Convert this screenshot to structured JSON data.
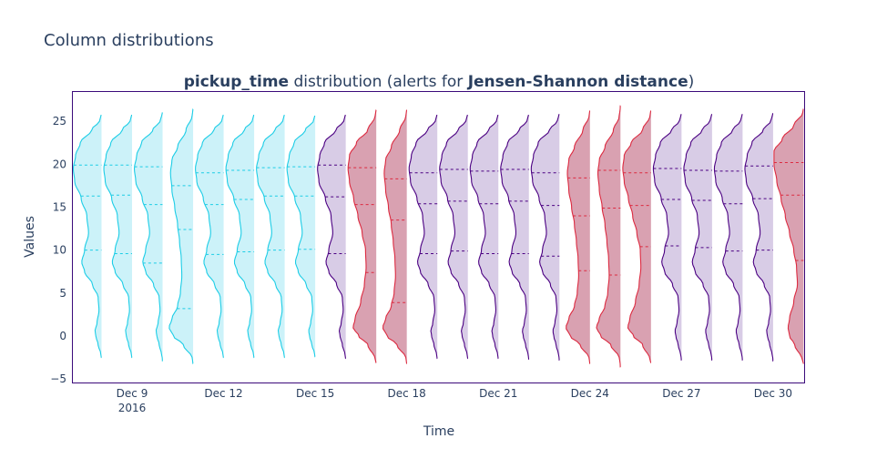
{
  "page_title": "Column distributions",
  "chart_data": {
    "type": "violin",
    "title_bold_column": "pickup_time",
    "title_middle": " distribution (alerts for ",
    "title_bold_metric": "Jensen-Shannon distance",
    "title_end": ")",
    "xlabel": "Time",
    "ylabel": "Values",
    "ylim": [
      -5.5,
      28.5
    ],
    "yticks": [
      -5,
      0,
      5,
      10,
      15,
      20,
      25
    ],
    "ytick_labels": [
      "−5",
      "0",
      "5",
      "10",
      "15",
      "20",
      "25"
    ],
    "xticks": [
      {
        "day": 9,
        "label": "Dec 9",
        "sublabel": "2016"
      },
      {
        "day": 12,
        "label": "Dec 12"
      },
      {
        "day": 15,
        "label": "Dec 15"
      },
      {
        "day": 18,
        "label": "Dec 18"
      },
      {
        "day": 21,
        "label": "Dec 21"
      },
      {
        "day": 24,
        "label": "Dec 24"
      },
      {
        "day": 27,
        "label": "Dec 27"
      },
      {
        "day": 30,
        "label": "Dec 30"
      }
    ],
    "colors": {
      "reference": {
        "line": "#1ccde6",
        "fill": "#ccf2f9"
      },
      "normal": {
        "line": "#4b0082",
        "fill": "#d8cce6"
      },
      "alert": {
        "line": "#dc2a40",
        "fill": "#d9a1b1"
      }
    },
    "profiles": {
      "bimodal": [
        [
          -3,
          0
        ],
        [
          -2,
          0.05
        ],
        [
          -1,
          0.12
        ],
        [
          0,
          0.2
        ],
        [
          0.6,
          0.23
        ],
        [
          1.5,
          0.16
        ],
        [
          3,
          0.09
        ],
        [
          4.5,
          0.12
        ],
        [
          6,
          0.32
        ],
        [
          7.5,
          0.6
        ],
        [
          8.6,
          0.7
        ],
        [
          10,
          0.6
        ],
        [
          12,
          0.46
        ],
        [
          14,
          0.52
        ],
        [
          16,
          0.72
        ],
        [
          18,
          0.95
        ],
        [
          19.5,
          1.0
        ],
        [
          21,
          0.92
        ],
        [
          22.5,
          0.75
        ],
        [
          24,
          0.35
        ],
        [
          25,
          0.1
        ],
        [
          26.5,
          0
        ]
      ],
      "low": [
        [
          -3.5,
          0
        ],
        [
          -2.5,
          0.05
        ],
        [
          -1,
          0.35
        ],
        [
          0,
          0.7
        ],
        [
          1,
          0.85
        ],
        [
          2,
          0.75
        ],
        [
          3.5,
          0.55
        ],
        [
          5,
          0.45
        ],
        [
          7,
          0.4
        ],
        [
          9,
          0.42
        ],
        [
          11,
          0.48
        ],
        [
          13,
          0.55
        ],
        [
          15,
          0.65
        ],
        [
          17,
          0.75
        ],
        [
          19,
          0.8
        ],
        [
          20.5,
          0.75
        ],
        [
          22,
          0.55
        ],
        [
          24,
          0.25
        ],
        [
          25.5,
          0.05
        ],
        [
          27,
          0
        ]
      ],
      "alert": [
        [
          -3.5,
          0
        ],
        [
          -2.5,
          0.08
        ],
        [
          -1,
          0.3
        ],
        [
          0,
          0.62
        ],
        [
          1,
          0.82
        ],
        [
          2,
          0.75
        ],
        [
          4,
          0.55
        ],
        [
          6,
          0.42
        ],
        [
          8,
          0.36
        ],
        [
          10,
          0.38
        ],
        [
          12,
          0.5
        ],
        [
          14,
          0.65
        ],
        [
          16,
          0.8
        ],
        [
          18,
          0.95
        ],
        [
          19.5,
          1.0
        ],
        [
          21,
          0.95
        ],
        [
          22.5,
          0.7
        ],
        [
          24,
          0.3
        ],
        [
          25.5,
          0.06
        ],
        [
          27,
          0
        ]
      ],
      "late": [
        [
          -3.5,
          0
        ],
        [
          -2.5,
          0.1
        ],
        [
          -1,
          0.32
        ],
        [
          0,
          0.5
        ],
        [
          1,
          0.55
        ],
        [
          2,
          0.5
        ],
        [
          4,
          0.35
        ],
        [
          6,
          0.22
        ],
        [
          8,
          0.25
        ],
        [
          10,
          0.35
        ],
        [
          12,
          0.5
        ],
        [
          14,
          0.65
        ],
        [
          16,
          0.8
        ],
        [
          18,
          0.95
        ],
        [
          20,
          1.05
        ],
        [
          21.5,
          1.05
        ],
        [
          23,
          0.75
        ],
        [
          24.5,
          0.35
        ],
        [
          26,
          0.06
        ],
        [
          27,
          0
        ]
      ]
    },
    "violins": [
      {
        "date": "Dec 8",
        "day": 8,
        "status": "reference",
        "profile": "bimodal",
        "min": -2.5,
        "max": 25.7,
        "q1": 10.0,
        "median": 16.3,
        "q3": 19.9
      },
      {
        "date": "Dec 9",
        "day": 9,
        "status": "reference",
        "profile": "bimodal",
        "min": -2.5,
        "max": 25.7,
        "q1": 9.6,
        "median": 16.4,
        "q3": 19.9
      },
      {
        "date": "Dec 10",
        "day": 10,
        "status": "reference",
        "profile": "bimodal",
        "min": -2.9,
        "max": 26.0,
        "q1": 8.5,
        "median": 15.3,
        "q3": 19.7
      },
      {
        "date": "Dec 11",
        "day": 11,
        "status": "reference",
        "profile": "low",
        "min": -3.2,
        "max": 26.4,
        "q1": 3.2,
        "median": 12.4,
        "q3": 17.5
      },
      {
        "date": "Dec 12",
        "day": 12,
        "status": "reference",
        "profile": "bimodal",
        "min": -2.5,
        "max": 25.7,
        "q1": 9.5,
        "median": 15.3,
        "q3": 19.0
      },
      {
        "date": "Dec 13",
        "day": 13,
        "status": "reference",
        "profile": "bimodal",
        "min": -2.5,
        "max": 25.7,
        "q1": 9.8,
        "median": 15.9,
        "q3": 19.3
      },
      {
        "date": "Dec 14",
        "day": 14,
        "status": "reference",
        "profile": "bimodal",
        "min": -2.5,
        "max": 25.7,
        "q1": 10.0,
        "median": 16.3,
        "q3": 19.6
      },
      {
        "date": "Dec 15",
        "day": 15,
        "status": "reference",
        "profile": "bimodal",
        "min": -2.4,
        "max": 25.6,
        "q1": 10.1,
        "median": 16.3,
        "q3": 19.7
      },
      {
        "date": "Dec 16",
        "day": 16,
        "status": "normal",
        "profile": "bimodal",
        "min": -2.6,
        "max": 25.7,
        "q1": 9.6,
        "median": 16.2,
        "q3": 19.9
      },
      {
        "date": "Dec 17",
        "day": 17,
        "status": "alert",
        "profile": "alert",
        "min": -3.1,
        "max": 26.3,
        "q1": 7.4,
        "median": 15.3,
        "q3": 19.6
      },
      {
        "date": "Dec 18",
        "day": 18,
        "status": "alert",
        "profile": "low",
        "min": -3.2,
        "max": 26.3,
        "q1": 3.9,
        "median": 13.5,
        "q3": 18.3
      },
      {
        "date": "Dec 19",
        "day": 19,
        "status": "normal",
        "profile": "bimodal",
        "min": -2.6,
        "max": 25.7,
        "q1": 9.6,
        "median": 15.4,
        "q3": 19.0
      },
      {
        "date": "Dec 20",
        "day": 20,
        "status": "normal",
        "profile": "bimodal",
        "min": -2.6,
        "max": 25.7,
        "q1": 9.9,
        "median": 15.7,
        "q3": 19.4
      },
      {
        "date": "Dec 21",
        "day": 21,
        "status": "normal",
        "profile": "bimodal",
        "min": -2.6,
        "max": 25.7,
        "q1": 9.6,
        "median": 15.4,
        "q3": 19.2
      },
      {
        "date": "Dec 22",
        "day": 22,
        "status": "normal",
        "profile": "bimodal",
        "min": -2.7,
        "max": 25.7,
        "q1": 9.6,
        "median": 15.7,
        "q3": 19.4
      },
      {
        "date": "Dec 23",
        "day": 23,
        "status": "normal",
        "profile": "bimodal",
        "min": -2.8,
        "max": 25.8,
        "q1": 9.3,
        "median": 15.2,
        "q3": 19.0
      },
      {
        "date": "Dec 24",
        "day": 24,
        "status": "alert",
        "profile": "low",
        "min": -3.2,
        "max": 26.2,
        "q1": 7.6,
        "median": 14.0,
        "q3": 18.4
      },
      {
        "date": "Dec 25",
        "day": 25,
        "status": "alert",
        "profile": "low",
        "min": -3.6,
        "max": 26.8,
        "q1": 7.1,
        "median": 14.9,
        "q3": 19.3
      },
      {
        "date": "Dec 26",
        "day": 26,
        "status": "alert",
        "profile": "alert",
        "min": -3.1,
        "max": 26.2,
        "q1": 10.4,
        "median": 15.2,
        "q3": 19.0
      },
      {
        "date": "Dec 27",
        "day": 27,
        "status": "normal",
        "profile": "bimodal",
        "min": -2.8,
        "max": 25.8,
        "q1": 10.5,
        "median": 15.9,
        "q3": 19.5
      },
      {
        "date": "Dec 28",
        "day": 28,
        "status": "normal",
        "profile": "bimodal",
        "min": -2.8,
        "max": 25.8,
        "q1": 10.3,
        "median": 15.8,
        "q3": 19.3
      },
      {
        "date": "Dec 29",
        "day": 29,
        "status": "normal",
        "profile": "bimodal",
        "min": -2.8,
        "max": 25.8,
        "q1": 9.9,
        "median": 15.4,
        "q3": 19.2
      },
      {
        "date": "Dec 30",
        "day": 30,
        "status": "normal",
        "profile": "bimodal",
        "min": -2.9,
        "max": 25.9,
        "q1": 10.0,
        "median": 16.0,
        "q3": 19.8
      },
      {
        "date": "Dec 31",
        "day": 31,
        "status": "alert",
        "profile": "late",
        "min": -3.2,
        "max": 26.4,
        "q1": 8.8,
        "median": 16.4,
        "q3": 20.2
      }
    ]
  }
}
